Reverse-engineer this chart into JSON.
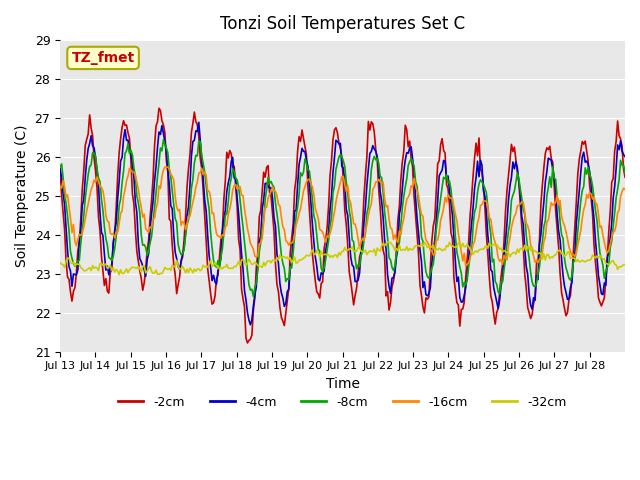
{
  "title": "Tonzi Soil Temperatures Set C",
  "xlabel": "Time",
  "ylabel": "Soil Temperature (C)",
  "ylim": [
    21.0,
    29.0
  ],
  "yticks": [
    21.0,
    22.0,
    23.0,
    24.0,
    25.0,
    26.0,
    27.0,
    28.0,
    29.0
  ],
  "xtick_labels": [
    "Jul 13",
    "Jul 14",
    "Jul 15",
    "Jul 16",
    "Jul 17",
    "Jul 18",
    "Jul 19",
    "Jul 20",
    "Jul 21",
    "Jul 22",
    "Jul 23",
    "Jul 24",
    "Jul 25",
    "Jul 26",
    "Jul 27",
    "Jul 28"
  ],
  "series": {
    "-2cm": {
      "color": "#cc0000",
      "linewidth": 1.2
    },
    "-4cm": {
      "color": "#0000cc",
      "linewidth": 1.2
    },
    "-8cm": {
      "color": "#00aa00",
      "linewidth": 1.2
    },
    "-16cm": {
      "color": "#ff8800",
      "linewidth": 1.2
    },
    "-32cm": {
      "color": "#cccc00",
      "linewidth": 1.2
    }
  },
  "annotation_text": "TZ_fmet",
  "annotation_color": "#cc0000",
  "annotation_bg": "#ffffcc",
  "annotation_border": "#aaaa00",
  "background_color": "#e8e8e8",
  "figure_bg": "#ffffff",
  "legend_position": "lower center"
}
